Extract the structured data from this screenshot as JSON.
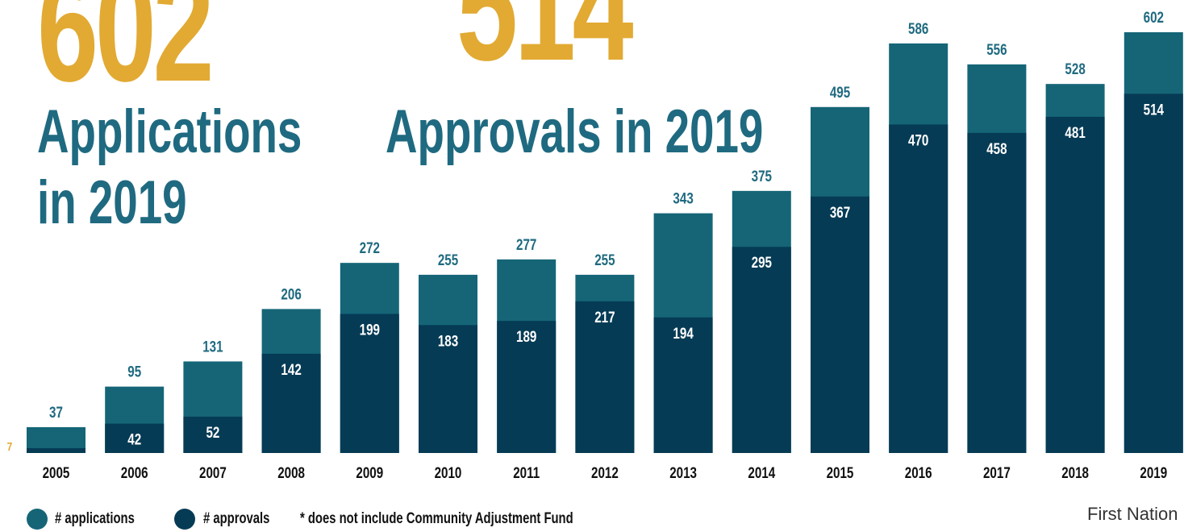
{
  "headline_apps": {
    "number": "602",
    "line1": "Applications",
    "line2": "in 2019"
  },
  "headline_approvals": {
    "number": "514",
    "line1": "Approvals in 2019"
  },
  "left_marker": "7",
  "legend": {
    "applications": "# applications",
    "approvals": "# approvals",
    "note": "* does not include Community Adjustment Fund"
  },
  "footer": "First Nation",
  "colors": {
    "applications": "#156577",
    "approvals": "#063b55",
    "accent": "#e2aa33",
    "headline": "#1f6a80"
  },
  "chart_data": {
    "type": "bar",
    "categories": [
      "2005",
      "2006",
      "2007",
      "2008",
      "2009",
      "2010",
      "2011",
      "2012",
      "2013",
      "2014",
      "2015",
      "2016",
      "2017",
      "2018",
      "2019"
    ],
    "series": [
      {
        "name": "# applications",
        "values": [
          37,
          95,
          131,
          206,
          272,
          255,
          277,
          255,
          343,
          375,
          495,
          586,
          556,
          528,
          602
        ]
      },
      {
        "name": "# approvals",
        "values": [
          7,
          42,
          52,
          142,
          199,
          183,
          189,
          217,
          194,
          295,
          367,
          470,
          458,
          481,
          514
        ]
      }
    ],
    "ylim": [
      0,
      602
    ],
    "grid": false,
    "legend": "bottom-left"
  }
}
